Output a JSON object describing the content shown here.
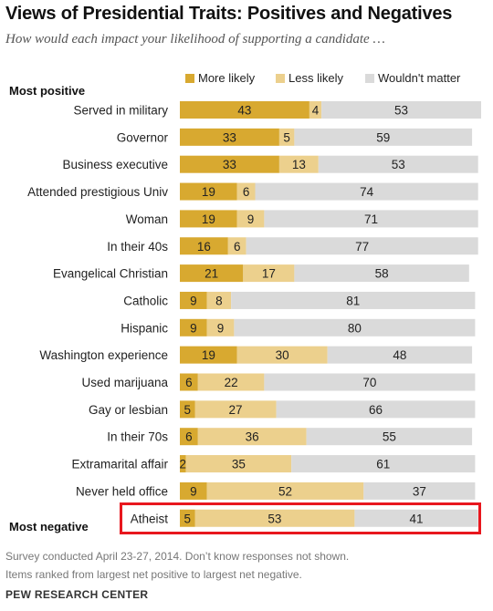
{
  "header": {
    "title": "Views of Presidential Traits: Positives and Negatives",
    "subtitle": "How would each impact your likelihood of supporting a candidate …"
  },
  "labels": {
    "most_positive": "Most positive",
    "most_negative": "Most negative"
  },
  "footer": {
    "note_line1": "Survey conducted April 23-27, 2014.  Don’t know responses not shown.",
    "note_line2": "Items ranked from largest net positive to largest net negative.",
    "source": "PEW RESEARCH CENTER"
  },
  "colors": {
    "more_likely": "#d8a930",
    "less_likely": "#ecd08d",
    "wouldnt_matter": "#dadada",
    "highlight": "#e8171e"
  },
  "chart_data": {
    "type": "bar",
    "orientation": "horizontal",
    "stacked": true,
    "legend_position": "top",
    "grid": false,
    "xlim": [
      0,
      100
    ],
    "series": [
      {
        "name": "More likely",
        "color": "#d8a930",
        "values": [
          43,
          33,
          33,
          19,
          19,
          16,
          21,
          9,
          9,
          19,
          6,
          5,
          6,
          2,
          9,
          5
        ]
      },
      {
        "name": "Less likely",
        "color": "#ecd08d",
        "values": [
          4,
          5,
          13,
          6,
          9,
          6,
          17,
          8,
          9,
          30,
          22,
          27,
          36,
          35,
          52,
          53
        ]
      },
      {
        "name": "Wouldn't matter",
        "color": "#dadada",
        "values": [
          53,
          59,
          53,
          74,
          71,
          77,
          58,
          81,
          80,
          48,
          70,
          66,
          55,
          61,
          37,
          41
        ]
      }
    ],
    "categories": [
      "Served in military",
      "Governor",
      "Business executive",
      "Attended prestigious Univ",
      "Woman",
      "In their 40s",
      "Evangelical Christian",
      "Catholic",
      "Hispanic",
      "Washington experience",
      "Used marijuana",
      "Gay or lesbian",
      "In their 70s",
      "Extramarital affair",
      "Never held office",
      "Atheist"
    ],
    "highlighted_category": "Atheist"
  }
}
